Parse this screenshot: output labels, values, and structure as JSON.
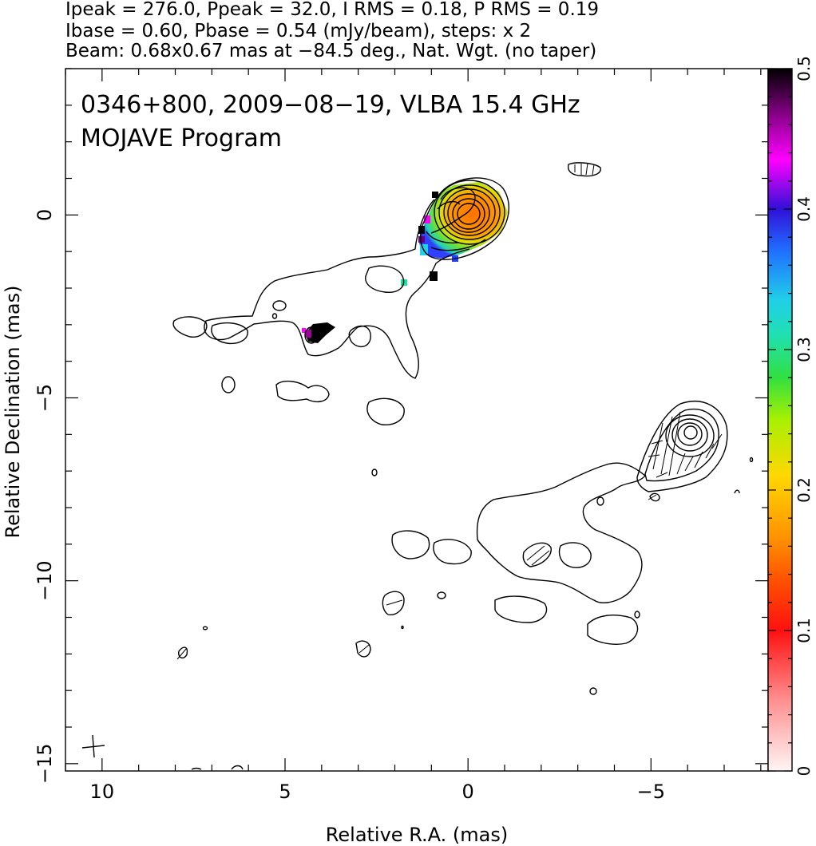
{
  "header": {
    "line1": "Ipeak = 276.0, Ppeak = 32.0, I RMS = 0.18, P RMS = 0.19",
    "line2": "Ibase = 0.60, Pbase = 0.54 (mJy/beam), steps: x 2",
    "line3": "Beam: 0.68x0.67 mas at −84.5 deg., Nat. Wgt. (no taper)"
  },
  "annotation": {
    "line1": "0346+800, 2009−08−19, VLBA 15.4 GHz",
    "line2": "MOJAVE Program"
  },
  "chart_data": {
    "type": "heatmap",
    "subtype": "radio contour map with fractional polarization colour overlay",
    "xlabel": "Relative R.A. (mas)",
    "ylabel": "Relative Declination (mas)",
    "xlim": [
      11,
      -8.2
    ],
    "ylim": [
      -15.2,
      4
    ],
    "x_ticks": [
      10,
      5,
      0,
      -5
    ],
    "x_tick_labels": [
      "10",
      "5",
      "0",
      "−5"
    ],
    "y_ticks": [
      0,
      -5,
      -10,
      -15
    ],
    "y_tick_labels": [
      "0",
      "−5",
      "−10",
      "−15"
    ],
    "colorbar": {
      "min": 0,
      "max": 0.5,
      "ticks": [
        0,
        0.1,
        0.2,
        0.3,
        0.4,
        0.5
      ],
      "tick_labels": [
        "0",
        "0.1",
        "0.2",
        "0.3",
        "0.4",
        "0.5"
      ],
      "colors": [
        "#fff0f0",
        "#ff8080",
        "#ff0000",
        "#ff5000",
        "#ff8c00",
        "#ffd000",
        "#c0f000",
        "#40e040",
        "#20e0a0",
        "#20d0e0",
        "#2060ff",
        "#3010e0",
        "#ff00ff",
        "#900090",
        "#000000"
      ]
    },
    "features": {
      "core": {
        "x": 0.0,
        "y": 0.0,
        "peak_mJy_per_beam": 276.0
      },
      "polarized_emission_color": "#ff8c00",
      "secondary_component": {
        "x": -6.0,
        "y": -6.0
      },
      "beam": {
        "major_mas": 0.68,
        "minor_mas": 0.67,
        "pa_deg": -84.5
      }
    }
  }
}
